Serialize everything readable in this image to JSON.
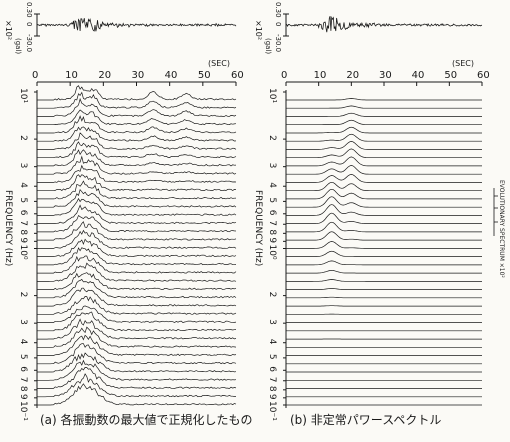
{
  "chart_data": [
    {
      "type": "line",
      "panel": "a",
      "top_trace": {
        "ylabel": "(gal)",
        "ylabel_scale": "×10²",
        "yticks": [
          "0.30",
          "0",
          "-30.0"
        ],
        "xlabel_unit": "(SEC)",
        "xticks": [
          0,
          10,
          20,
          30,
          40,
          50,
          60
        ],
        "active_range_sec": [
          10,
          20
        ]
      },
      "spectra": {
        "ylabel": "FREQUENCY (Hz)",
        "yticks": [
          "10¹",
          "2",
          "3",
          "4",
          "5",
          "6",
          "7",
          "8",
          "9",
          "10⁰",
          "2",
          "3",
          "4",
          "5",
          "6",
          "7",
          "8",
          "9",
          "10⁻¹"
        ],
        "num_traces": 38,
        "peak_regions_sec": [
          {
            "time": 13,
            "amplitude": 0.9
          },
          {
            "time": 17,
            "amplitude": 0.7
          },
          {
            "time": 35,
            "amplitude": 0.4
          },
          {
            "time": 45,
            "amplitude": 0.3
          }
        ]
      },
      "caption": "(a) 各振動数の最大値で正規化したもの"
    },
    {
      "type": "line",
      "panel": "b",
      "top_trace": {
        "ylabel": "(gal)",
        "ylabel_scale": "×10²",
        "yticks": [
          "0.30",
          "0",
          "-30.0"
        ],
        "xlabel_unit": "(SEC)",
        "xticks": [
          0,
          10,
          20,
          30,
          40,
          50,
          60
        ],
        "active_range_sec": [
          10,
          20
        ]
      },
      "spectra": {
        "ylabel": "FREQUENCY (Hz)",
        "right_label": "EVOLUTIONARY SPECTRUM ×10²",
        "yticks": [
          "10¹",
          "2",
          "3",
          "4",
          "5",
          "6",
          "7",
          "8",
          "9",
          "10⁰",
          "2",
          "3",
          "4",
          "5",
          "6",
          "7",
          "8",
          "9",
          "10⁻¹"
        ],
        "num_traces": 38,
        "peak_regions_sec": [
          {
            "time": 14,
            "amplitude": 0.6
          },
          {
            "time": 20,
            "amplitude": 0.5
          }
        ]
      },
      "caption": "(b) 非定常パワースペクトル"
    }
  ]
}
